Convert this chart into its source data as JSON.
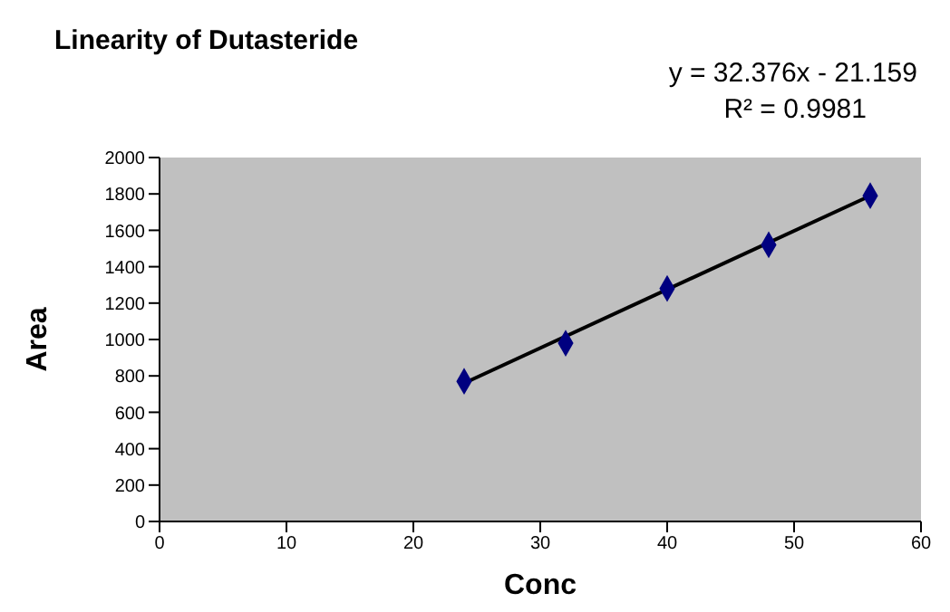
{
  "chart_data": {
    "type": "scatter",
    "title": "Linearity of Dutasteride",
    "xlabel": "Conc",
    "ylabel": "Area",
    "annotations": [
      "y = 32.376x - 21.159",
      "R² = 0.9981"
    ],
    "x": [
      24,
      32,
      40,
      48,
      56
    ],
    "series": [
      {
        "color": "#000080",
        "values": [
          770,
          980,
          1280,
          1520,
          1790
        ],
        "marker": "diamond"
      },
      {
        "type": "line",
        "color": "#000000",
        "x": [
          24,
          56
        ],
        "values": [
          760,
          1790
        ],
        "marker": "none",
        "line_style": "solid"
      }
    ],
    "xlim": [
      0,
      60
    ],
    "xticks": [
      0,
      10,
      20,
      30,
      40,
      50,
      60
    ],
    "ylim": [
      0,
      2000
    ],
    "yticks": [
      0,
      200,
      400,
      600,
      800,
      1000,
      1200,
      1400,
      1600,
      1800,
      2000
    ],
    "grid": false
  }
}
